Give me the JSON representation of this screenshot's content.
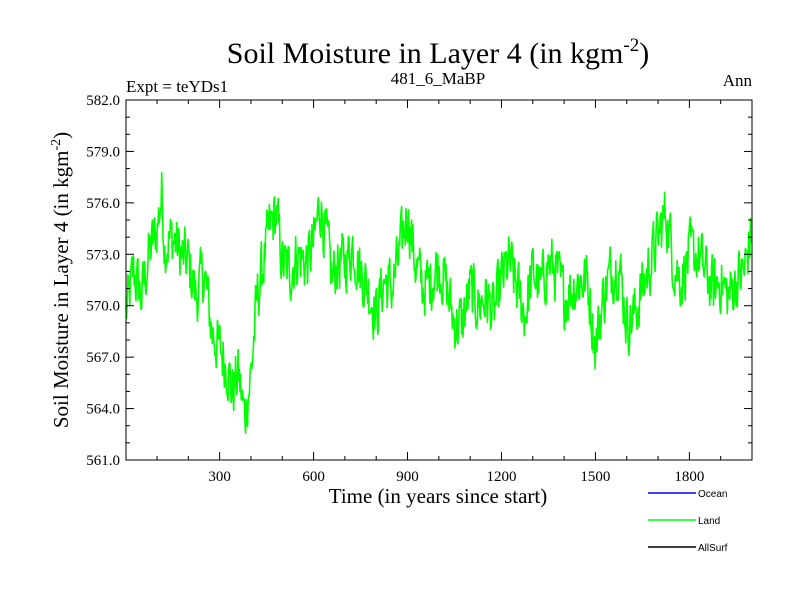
{
  "chart_data": {
    "type": "line",
    "title": "Soil Moisture in Layer 4 (in kgm",
    "title_sup": "-2",
    "title_close": ")",
    "subtitle_left": "Expt = teYDs1",
    "subtitle_center": "481_6_MaBP",
    "subtitle_right": "Ann",
    "xlabel": "Time (in years since start)",
    "ylabel": "Soil Moisture in Layer 4 (in kgm",
    "ylabel_sup": "-2",
    "ylabel_close": ")",
    "xlim": [
      1,
      2000
    ],
    "ylim": [
      561.0,
      582.0
    ],
    "xticks": [
      300,
      600,
      900,
      1200,
      1500,
      1800
    ],
    "xtick_labels": [
      "300",
      "600",
      "900",
      "1200",
      "1500",
      "1800"
    ],
    "yticks": [
      561,
      564,
      567,
      570,
      573,
      576,
      579,
      582
    ],
    "ytick_labels": [
      "561.0",
      "564.0",
      "567.0",
      "570.0",
      "573.0",
      "576.0",
      "579.0",
      "582.0"
    ],
    "grid": false,
    "legend_position": "bottom-right",
    "series": [
      {
        "name": "Land",
        "color": "#00ff00",
        "x": [
          1,
          25,
          50,
          75,
          100,
          115,
          125,
          150,
          175,
          200,
          225,
          250,
          275,
          300,
          325,
          340,
          360,
          380,
          400,
          420,
          440,
          460,
          480,
          500,
          525,
          550,
          575,
          600,
          620,
          640,
          660,
          675,
          700,
          725,
          750,
          775,
          800,
          825,
          850,
          875,
          900,
          925,
          950,
          975,
          1000,
          1025,
          1050,
          1075,
          1100,
          1125,
          1150,
          1175,
          1200,
          1225,
          1250,
          1275,
          1300,
          1325,
          1350,
          1375,
          1400,
          1425,
          1450,
          1475,
          1500,
          1525,
          1550,
          1575,
          1600,
          1625,
          1650,
          1675,
          1700,
          1725,
          1750,
          1775,
          1800,
          1825,
          1850,
          1875,
          1900,
          1925,
          1950,
          1975,
          2000
        ],
        "values": [
          569.5,
          572.0,
          570.5,
          573.0,
          574.5,
          576.5,
          573.5,
          574.0,
          573.0,
          572.5,
          570.5,
          572.0,
          568.5,
          567.5,
          566.5,
          565.0,
          566.0,
          563.5,
          566.0,
          570.5,
          572.5,
          574.5,
          575.5,
          572.5,
          572.0,
          573.0,
          572.5,
          573.5,
          576.0,
          574.0,
          571.5,
          572.5,
          572.5,
          573.5,
          572.0,
          571.0,
          569.5,
          571.5,
          571.0,
          573.0,
          575.5,
          572.5,
          571.0,
          571.5,
          572.5,
          571.0,
          569.0,
          569.0,
          571.0,
          570.0,
          570.5,
          569.5,
          571.5,
          572.5,
          571.0,
          569.5,
          572.0,
          571.0,
          572.5,
          572.0,
          570.5,
          571.0,
          571.5,
          571.5,
          567.5,
          570.5,
          572.0,
          572.5,
          569.0,
          569.5,
          571.0,
          572.5,
          574.0,
          575.5,
          572.5,
          571.5,
          573.0,
          573.0,
          572.0,
          571.0,
          571.5,
          570.5,
          571.5,
          572.0,
          574.5
        ]
      },
      {
        "name": "Ocean",
        "color": "#0000ff",
        "x": [],
        "values": []
      },
      {
        "name": "AllSurf",
        "color": "#000000",
        "x": [],
        "values": []
      }
    ],
    "legend": [
      {
        "label": "Ocean",
        "color": "#0000ff"
      },
      {
        "label": "Land",
        "color": "#00ff00"
      },
      {
        "label": "AllSurf",
        "color": "#000000"
      }
    ]
  }
}
